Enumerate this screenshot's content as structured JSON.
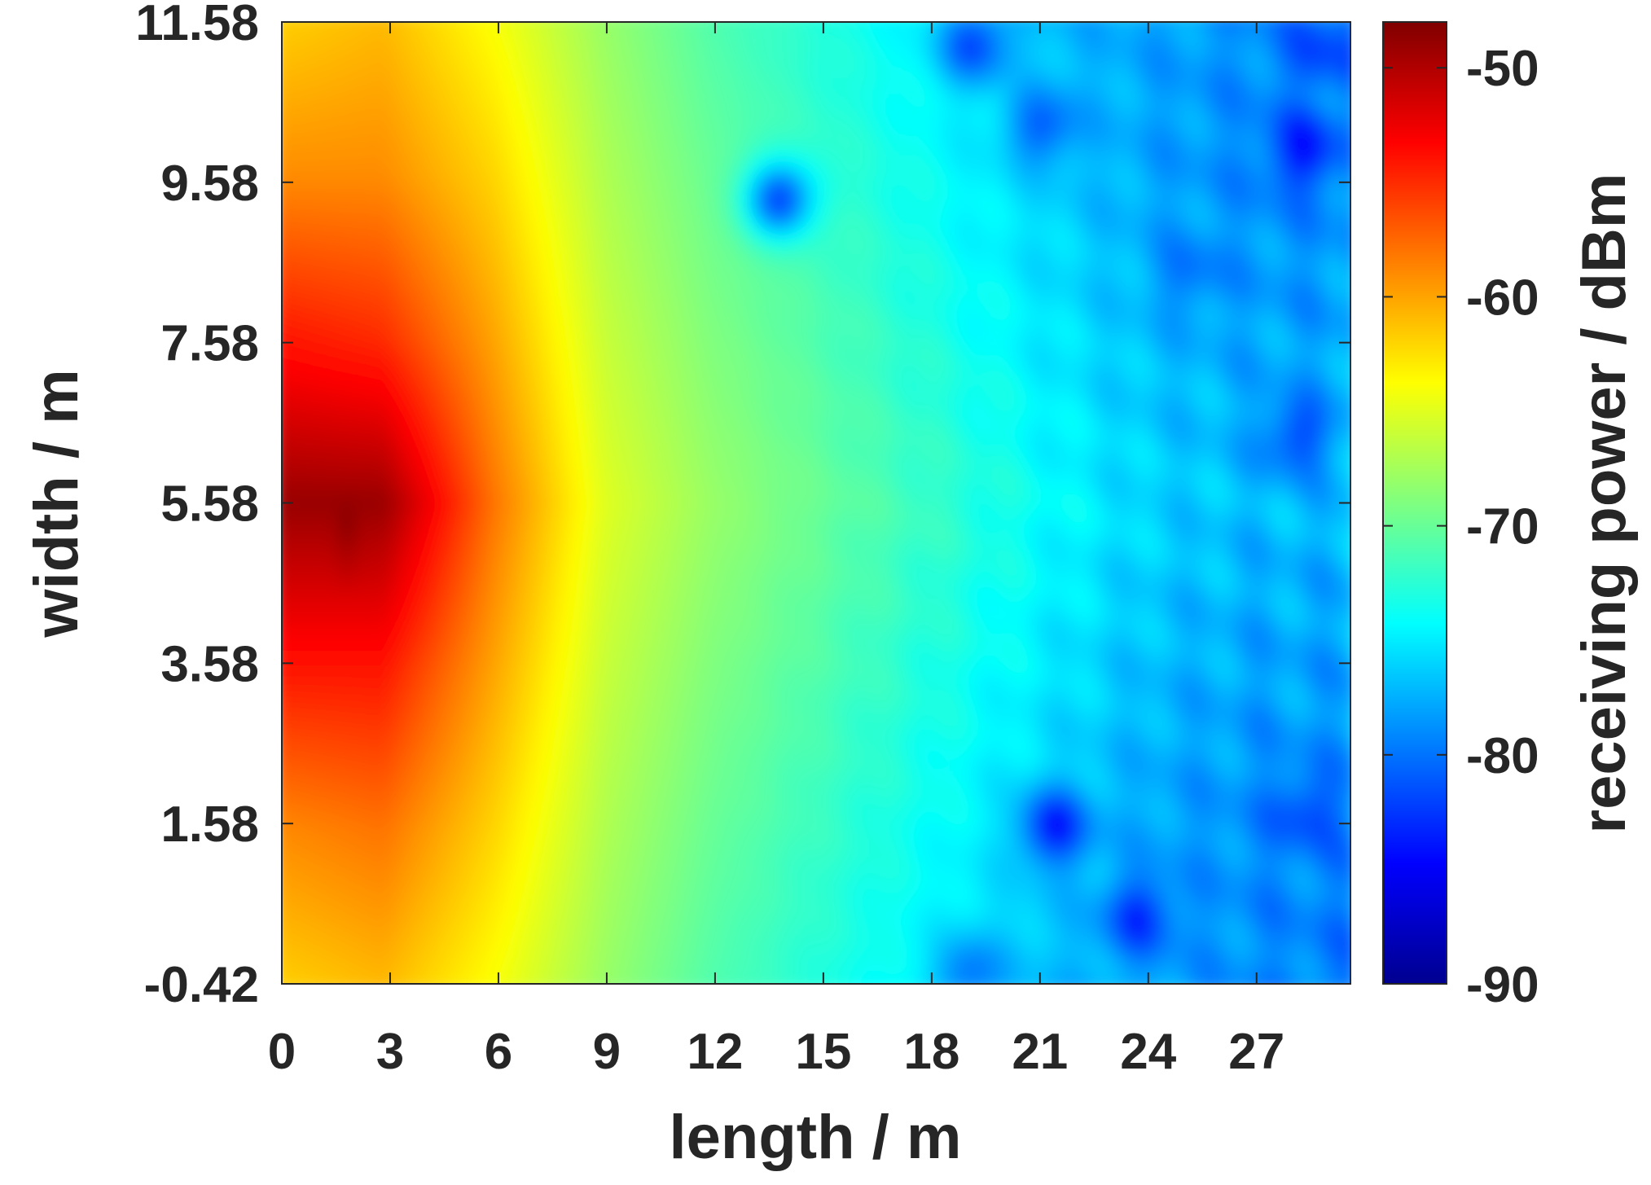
{
  "chart_data": {
    "type": "heatmap",
    "title": "",
    "xlabel": "length / m",
    "ylabel": "width / m",
    "colorbar_label": "receiving power / dBm",
    "colormap": "jet",
    "xlim": [
      0,
      29.6
    ],
    "ylim": [
      -0.42,
      11.58
    ],
    "x_ticks": [
      0,
      3,
      6,
      9,
      12,
      15,
      18,
      21,
      24,
      27
    ],
    "x_tick_labels": [
      "0",
      "3",
      "6",
      "9",
      "12",
      "15",
      "18",
      "21",
      "24",
      "27"
    ],
    "y_ticks": [
      -0.42,
      1.58,
      3.58,
      5.58,
      7.58,
      9.58,
      11.58
    ],
    "y_tick_labels": [
      "-0.42",
      "1.58",
      "3.58",
      "5.58",
      "7.58",
      "9.58",
      "11.58"
    ],
    "clim": [
      -90,
      -48
    ],
    "colorbar_ticks": [
      -90,
      -80,
      -70,
      -60,
      -50
    ],
    "colorbar_tick_labels": [
      "-90",
      "-80",
      "-70",
      "-60",
      "-50"
    ],
    "source_peak": {
      "x": 2,
      "y": 5.4,
      "value": -48
    },
    "value_samples_dBm": {
      "x": [
        0,
        3,
        6,
        9,
        12,
        15,
        18,
        21,
        24,
        27,
        29.6
      ],
      "y": [
        -0.42,
        1.58,
        3.58,
        5.58,
        7.58,
        9.58,
        11.58
      ],
      "values": [
        [
          -62,
          -61,
          -64,
          -68,
          -71,
          -73,
          -75,
          -77,
          -78,
          -79,
          -80
        ],
        [
          -59,
          -58,
          -62,
          -67,
          -70,
          -72,
          -74,
          -76,
          -78,
          -79,
          -79
        ],
        [
          -54,
          -54,
          -60,
          -66,
          -69,
          -71,
          -73,
          -75,
          -77,
          -78,
          -78
        ],
        [
          -49,
          -49,
          -58,
          -65,
          -68,
          -70,
          -72,
          -74,
          -76,
          -77,
          -77
        ],
        [
          -54,
          -55,
          -60,
          -66,
          -69,
          -71,
          -73,
          -75,
          -77,
          -78,
          -78
        ],
        [
          -59,
          -59,
          -62,
          -67,
          -70,
          -72,
          -74,
          -76,
          -78,
          -79,
          -79
        ],
        [
          -62,
          -61,
          -64,
          -68,
          -71,
          -73,
          -75,
          -77,
          -78,
          -79,
          -80
        ]
      ]
    },
    "deep_fades": [
      {
        "x": 13.8,
        "y": 9.3,
        "value": -82
      },
      {
        "x": 19.1,
        "y": 11.2,
        "value": -82
      },
      {
        "x": 21.3,
        "y": 1.6,
        "value": -84
      },
      {
        "x": 23.6,
        "y": 0.5,
        "value": -83
      },
      {
        "x": 28.1,
        "y": 9.9,
        "value": -84
      },
      {
        "x": 27.9,
        "y": 6.4,
        "value": -82
      },
      {
        "x": 28.2,
        "y": 1.8,
        "value": -82
      },
      {
        "x": 28.6,
        "y": 11.1,
        "value": -82
      },
      {
        "x": 21.0,
        "y": 10.2,
        "value": -81
      },
      {
        "x": 25.0,
        "y": 8.4,
        "value": -80
      },
      {
        "x": 19.0,
        "y": -0.2,
        "value": -80
      }
    ]
  }
}
